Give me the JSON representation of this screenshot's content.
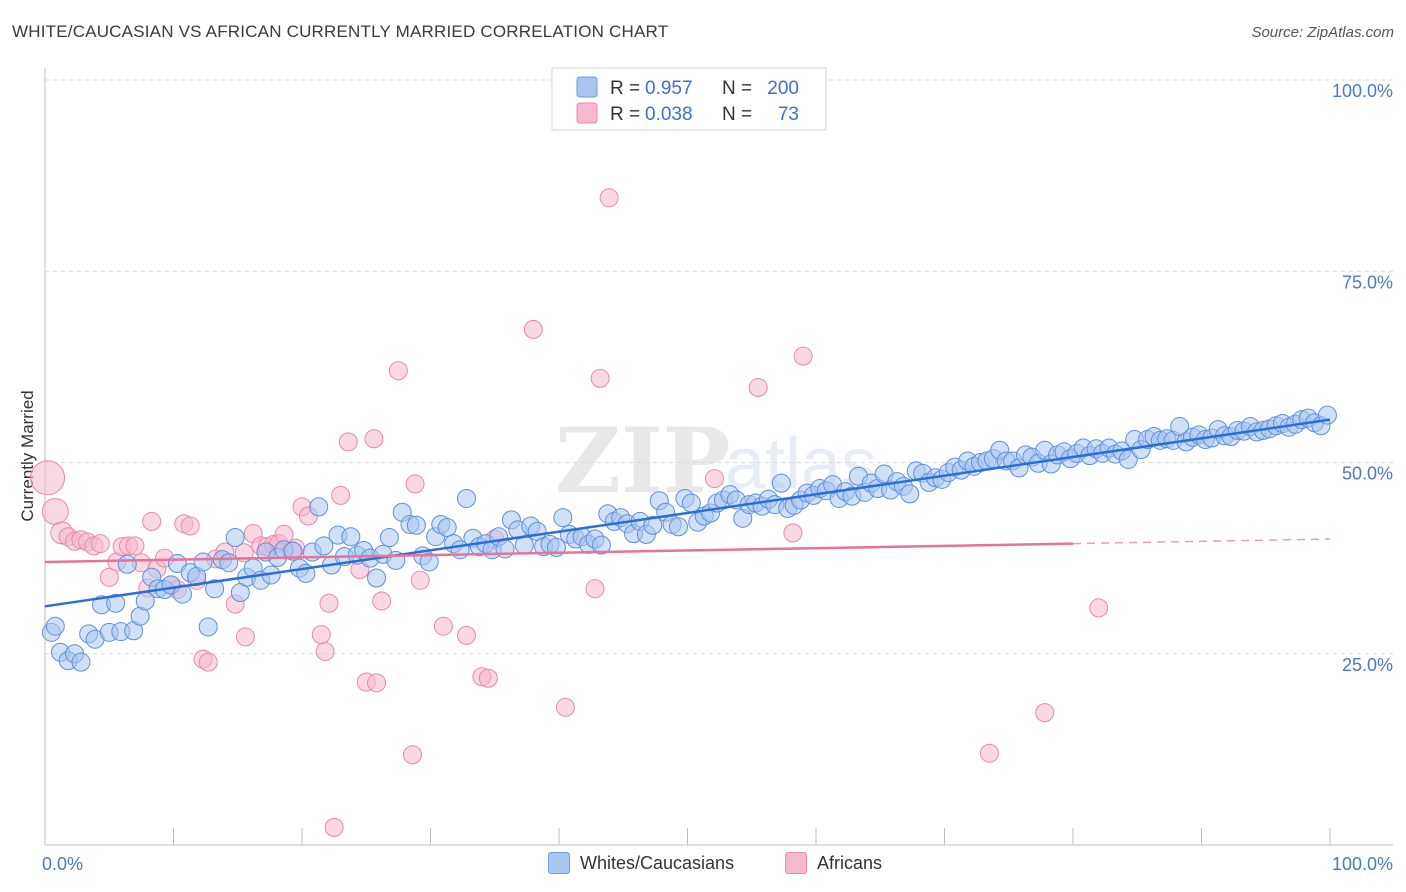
{
  "header": {
    "title": "WHITE/CAUCASIAN VS AFRICAN CURRENTLY MARRIED CORRELATION CHART",
    "source": "Source: ZipAtlas.com"
  },
  "watermark": {
    "zip": "ZIP",
    "atlas": "atlas"
  },
  "colors": {
    "blue": "#4a78c8",
    "blue_fill": "#a8c6f0",
    "blue_line": "#2c6fd4",
    "pink_fill": "#f5b8cc",
    "pink_line": "#e8729a",
    "grid": "#d8d8d8"
  },
  "legend": {
    "rows": [
      {
        "r_label": "R =",
        "r_value": "0.957",
        "n_label": "N =",
        "n_value": "200"
      },
      {
        "r_label": "R =",
        "r_value": "0.038",
        "n_label": "N =",
        "n_value": "73"
      }
    ]
  },
  "bottom_legend": {
    "series1": "Whites/Caucasians",
    "series2": "Africans"
  },
  "chart_data": {
    "type": "scatter",
    "title": "WHITE/CAUCASIAN VS AFRICAN CURRENTLY MARRIED CORRELATION CHART",
    "xlabel": "",
    "ylabel": "Currently Married",
    "xlim": [
      0,
      100
    ],
    "ylim": [
      0,
      100
    ],
    "x_tick_labels": [
      "0.0%",
      "100.0%"
    ],
    "y_ticks": [
      25,
      50,
      75,
      100
    ],
    "y_tick_labels": [
      "25.0%",
      "50.0%",
      "75.0%",
      "100.0%"
    ],
    "grid": true,
    "series": [
      {
        "name": "Whites/Caucasians",
        "R": 0.957,
        "N": 200,
        "trend": {
          "x": [
            0,
            100
          ],
          "y": [
            31.2,
            55.6
          ]
        },
        "points": [
          [
            0.5,
            27.8
          ],
          [
            0.8,
            28.6
          ],
          [
            1.2,
            25.2
          ],
          [
            1.8,
            24.1
          ],
          [
            2.3,
            25.0
          ],
          [
            2.8,
            23.9
          ],
          [
            3.4,
            27.6
          ],
          [
            3.9,
            26.9
          ],
          [
            4.4,
            31.4
          ],
          [
            5.0,
            27.8
          ],
          [
            5.5,
            31.6
          ],
          [
            5.9,
            27.9
          ],
          [
            6.4,
            36.7
          ],
          [
            6.9,
            28.0
          ],
          [
            7.4,
            29.9
          ],
          [
            7.8,
            31.9
          ],
          [
            8.3,
            35.0
          ],
          [
            8.8,
            33.5
          ],
          [
            9.3,
            33.4
          ],
          [
            9.8,
            34.0
          ],
          [
            10.3,
            36.8
          ],
          [
            10.7,
            32.8
          ],
          [
            11.3,
            35.6
          ],
          [
            11.8,
            35.1
          ],
          [
            12.3,
            37.0
          ],
          [
            12.7,
            28.5
          ],
          [
            13.2,
            33.5
          ],
          [
            13.8,
            37.3
          ],
          [
            14.3,
            36.9
          ],
          [
            14.8,
            40.2
          ],
          [
            15.2,
            33.0
          ],
          [
            15.7,
            35.0
          ],
          [
            16.2,
            36.2
          ],
          [
            16.8,
            34.6
          ],
          [
            17.2,
            38.3
          ],
          [
            17.6,
            35.3
          ],
          [
            18.1,
            37.6
          ],
          [
            18.6,
            38.6
          ],
          [
            19.3,
            38.4
          ],
          [
            19.8,
            36.2
          ],
          [
            20.3,
            35.5
          ],
          [
            20.8,
            38.3
          ],
          [
            21.3,
            44.2
          ],
          [
            21.7,
            39.1
          ],
          [
            22.3,
            36.6
          ],
          [
            22.8,
            40.5
          ],
          [
            23.3,
            37.7
          ],
          [
            23.8,
            40.3
          ],
          [
            24.3,
            37.9
          ],
          [
            24.8,
            38.5
          ],
          [
            25.3,
            37.5
          ],
          [
            25.8,
            34.9
          ],
          [
            26.3,
            38.0
          ],
          [
            26.8,
            40.2
          ],
          [
            27.3,
            37.2
          ],
          [
            27.8,
            43.5
          ],
          [
            28.4,
            41.9
          ],
          [
            28.9,
            41.8
          ],
          [
            29.4,
            37.8
          ],
          [
            29.9,
            37.0
          ],
          [
            30.4,
            40.3
          ],
          [
            30.8,
            41.9
          ],
          [
            31.3,
            41.5
          ],
          [
            31.8,
            39.4
          ],
          [
            32.3,
            38.6
          ],
          [
            32.8,
            45.3
          ],
          [
            33.3,
            40.1
          ],
          [
            33.8,
            39.0
          ],
          [
            34.3,
            39.4
          ],
          [
            34.8,
            38.6
          ],
          [
            35.3,
            40.3
          ],
          [
            35.8,
            38.7
          ],
          [
            36.3,
            42.5
          ],
          [
            36.8,
            41.2
          ],
          [
            37.3,
            39.2
          ],
          [
            37.8,
            41.7
          ],
          [
            38.3,
            41.0
          ],
          [
            38.8,
            39.0
          ],
          [
            39.3,
            39.3
          ],
          [
            39.8,
            38.9
          ],
          [
            40.3,
            42.8
          ],
          [
            40.8,
            40.6
          ],
          [
            41.3,
            40.0
          ],
          [
            41.8,
            40.3
          ],
          [
            42.3,
            39.3
          ],
          [
            42.8,
            40.0
          ],
          [
            43.3,
            39.2
          ],
          [
            43.8,
            43.3
          ],
          [
            44.3,
            42.3
          ],
          [
            44.8,
            42.8
          ],
          [
            45.3,
            42.0
          ],
          [
            45.8,
            40.7
          ],
          [
            46.3,
            42.3
          ],
          [
            46.8,
            40.6
          ],
          [
            47.3,
            41.8
          ],
          [
            47.8,
            45.0
          ],
          [
            48.3,
            43.5
          ],
          [
            48.8,
            41.9
          ],
          [
            49.3,
            41.6
          ],
          [
            49.8,
            45.3
          ],
          [
            50.3,
            44.7
          ],
          [
            50.8,
            42.2
          ],
          [
            51.3,
            43.0
          ],
          [
            51.8,
            43.4
          ],
          [
            52.3,
            44.7
          ],
          [
            52.8,
            45.1
          ],
          [
            53.3,
            45.8
          ],
          [
            53.8,
            45.1
          ],
          [
            54.3,
            42.7
          ],
          [
            54.8,
            44.5
          ],
          [
            55.3,
            44.7
          ],
          [
            55.8,
            44.3
          ],
          [
            56.3,
            45.2
          ],
          [
            56.8,
            44.5
          ],
          [
            57.3,
            47.3
          ],
          [
            57.8,
            44.0
          ],
          [
            58.3,
            44.4
          ],
          [
            58.8,
            45.1
          ],
          [
            59.3,
            46.0
          ],
          [
            59.8,
            45.7
          ],
          [
            60.3,
            46.6
          ],
          [
            60.8,
            46.3
          ],
          [
            61.3,
            47.1
          ],
          [
            61.8,
            45.3
          ],
          [
            62.3,
            46.2
          ],
          [
            62.8,
            45.6
          ],
          [
            63.3,
            48.2
          ],
          [
            63.8,
            46.1
          ],
          [
            64.3,
            47.3
          ],
          [
            64.8,
            46.6
          ],
          [
            65.3,
            48.5
          ],
          [
            65.8,
            46.4
          ],
          [
            66.3,
            47.5
          ],
          [
            66.8,
            46.9
          ],
          [
            67.3,
            45.9
          ],
          [
            67.8,
            48.9
          ],
          [
            68.3,
            48.6
          ],
          [
            68.8,
            47.4
          ],
          [
            69.3,
            48.0
          ],
          [
            69.8,
            47.8
          ],
          [
            70.3,
            48.7
          ],
          [
            70.8,
            49.4
          ],
          [
            71.3,
            49.0
          ],
          [
            71.8,
            50.2
          ],
          [
            72.3,
            49.5
          ],
          [
            72.8,
            50.0
          ],
          [
            73.3,
            50.2
          ],
          [
            73.8,
            50.5
          ],
          [
            74.3,
            51.6
          ],
          [
            74.8,
            50.2
          ],
          [
            75.3,
            50.2
          ],
          [
            75.8,
            49.3
          ],
          [
            76.3,
            51.0
          ],
          [
            76.8,
            50.7
          ],
          [
            77.3,
            49.9
          ],
          [
            77.8,
            51.6
          ],
          [
            78.3,
            49.8
          ],
          [
            78.8,
            51.0
          ],
          [
            79.3,
            51.4
          ],
          [
            79.8,
            50.5
          ],
          [
            80.3,
            51.2
          ],
          [
            80.8,
            51.9
          ],
          [
            81.3,
            50.9
          ],
          [
            81.8,
            51.8
          ],
          [
            82.3,
            51.2
          ],
          [
            82.8,
            51.9
          ],
          [
            83.3,
            51.1
          ],
          [
            83.8,
            51.5
          ],
          [
            84.3,
            50.4
          ],
          [
            84.8,
            53.0
          ],
          [
            85.3,
            51.7
          ],
          [
            85.8,
            53.0
          ],
          [
            86.3,
            53.4
          ],
          [
            86.8,
            52.9
          ],
          [
            87.3,
            53.1
          ],
          [
            87.8,
            52.9
          ],
          [
            88.3,
            54.7
          ],
          [
            88.8,
            52.7
          ],
          [
            89.3,
            53.3
          ],
          [
            89.8,
            53.6
          ],
          [
            90.3,
            53.0
          ],
          [
            90.8,
            53.2
          ],
          [
            91.3,
            54.3
          ],
          [
            91.8,
            53.5
          ],
          [
            92.3,
            53.4
          ],
          [
            92.8,
            54.2
          ],
          [
            93.3,
            54.1
          ],
          [
            93.8,
            54.7
          ],
          [
            94.3,
            54.0
          ],
          [
            94.8,
            54.2
          ],
          [
            95.3,
            54.4
          ],
          [
            95.8,
            54.8
          ],
          [
            96.3,
            55.1
          ],
          [
            96.8,
            54.6
          ],
          [
            97.3,
            55.0
          ],
          [
            97.8,
            55.6
          ],
          [
            98.3,
            55.8
          ],
          [
            98.8,
            55.2
          ],
          [
            99.3,
            54.8
          ],
          [
            99.8,
            56.2
          ]
        ]
      },
      {
        "name": "Africans",
        "R": 0.038,
        "N": 73,
        "trend": {
          "x": [
            0,
            80
          ],
          "y": [
            37.0,
            39.4
          ],
          "dashed_to": {
            "x": 100,
            "y": 40.0
          }
        },
        "points": [
          [
            0.2,
            48.0
          ],
          [
            0.8,
            43.6
          ],
          [
            1.3,
            40.8
          ],
          [
            1.8,
            40.3
          ],
          [
            2.3,
            39.7
          ],
          [
            2.8,
            39.9
          ],
          [
            3.3,
            39.6
          ],
          [
            3.8,
            39.1
          ],
          [
            4.3,
            39.4
          ],
          [
            5.0,
            35.0
          ],
          [
            5.6,
            37.0
          ],
          [
            6.0,
            39.0
          ],
          [
            6.5,
            39.1
          ],
          [
            7.0,
            39.1
          ],
          [
            7.5,
            36.9
          ],
          [
            8.0,
            33.6
          ],
          [
            8.3,
            42.3
          ],
          [
            8.7,
            36.1
          ],
          [
            9.3,
            37.5
          ],
          [
            9.8,
            34.0
          ],
          [
            10.3,
            33.4
          ],
          [
            10.8,
            42.0
          ],
          [
            11.3,
            41.7
          ],
          [
            11.8,
            34.6
          ],
          [
            12.3,
            24.3
          ],
          [
            12.7,
            23.9
          ],
          [
            13.3,
            37.4
          ],
          [
            14.0,
            38.3
          ],
          [
            14.8,
            31.5
          ],
          [
            15.5,
            38.2
          ],
          [
            15.6,
            27.2
          ],
          [
            16.2,
            40.7
          ],
          [
            16.8,
            39.1
          ],
          [
            17.3,
            39.0
          ],
          [
            17.8,
            39.3
          ],
          [
            18.2,
            39.4
          ],
          [
            18.6,
            40.6
          ],
          [
            19.2,
            38.5
          ],
          [
            19.5,
            38.8
          ],
          [
            20.0,
            44.2
          ],
          [
            20.5,
            43.0
          ],
          [
            21.5,
            27.5
          ],
          [
            21.8,
            25.3
          ],
          [
            22.1,
            31.6
          ],
          [
            22.5,
            2.3
          ],
          [
            23.0,
            45.7
          ],
          [
            23.6,
            52.7
          ],
          [
            24.5,
            36.0
          ],
          [
            25.0,
            21.3
          ],
          [
            25.6,
            53.1
          ],
          [
            25.8,
            21.2
          ],
          [
            26.2,
            31.9
          ],
          [
            27.5,
            62.0
          ],
          [
            28.6,
            11.8
          ],
          [
            28.8,
            47.2
          ],
          [
            29.2,
            34.6
          ],
          [
            31.0,
            28.6
          ],
          [
            32.8,
            27.4
          ],
          [
            34.0,
            22.0
          ],
          [
            34.5,
            21.8
          ],
          [
            35.0,
            40.0
          ],
          [
            38.0,
            67.4
          ],
          [
            40.5,
            18.0
          ],
          [
            42.8,
            33.5
          ],
          [
            43.2,
            61.0
          ],
          [
            43.9,
            84.6
          ],
          [
            52.1,
            47.9
          ],
          [
            55.5,
            59.8
          ],
          [
            58.2,
            40.8
          ],
          [
            59.0,
            63.9
          ],
          [
            73.5,
            12.0
          ],
          [
            77.8,
            17.3
          ],
          [
            82.0,
            31.0
          ]
        ]
      }
    ]
  }
}
